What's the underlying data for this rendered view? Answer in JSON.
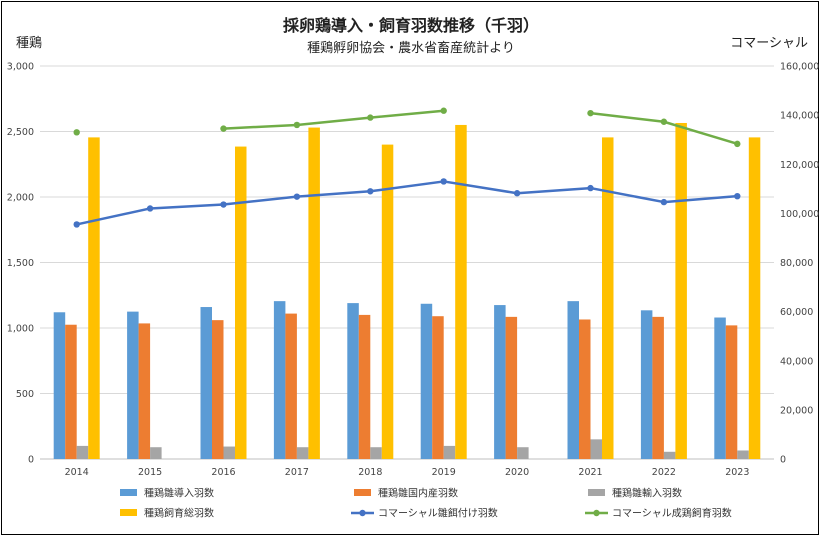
{
  "chart_data": {
    "type": "bar",
    "title": "採卵鶏導入・飼育羽数推移（千羽）",
    "subtitle": "種鶏孵卵協会・農水省畜産統計より",
    "left_axis_label": "種鶏",
    "right_axis_label": "コマーシャル",
    "categories": [
      "2014",
      "2015",
      "2016",
      "2017",
      "2018",
      "2019",
      "2020",
      "2021",
      "2022",
      "2023"
    ],
    "ylim_left": [
      0,
      3000
    ],
    "yticks_left": [
      "0",
      "500",
      "1,000",
      "1,500",
      "2,000",
      "2,500",
      "3,000"
    ],
    "ylim_right": [
      0,
      160000
    ],
    "yticks_right": [
      "0",
      "20,000",
      "40,000",
      "60,000",
      "80,000",
      "100,000",
      "120,000",
      "140,000",
      "160,000"
    ],
    "grid": true,
    "legend_position": "bottom",
    "series": [
      {
        "name": "種鶏雛導入羽数",
        "kind": "bar",
        "axis": "left",
        "color": "#5b9bd5",
        "values": [
          1120,
          1125,
          1160,
          1205,
          1190,
          1185,
          1175,
          1205,
          1135,
          1080
        ]
      },
      {
        "name": "種鶏雛国内産羽数",
        "kind": "bar",
        "axis": "left",
        "color": "#ed7d31",
        "values": [
          1025,
          1035,
          1060,
          1110,
          1100,
          1090,
          1085,
          1065,
          1085,
          1020
        ]
      },
      {
        "name": "種鶏雛輸入羽数",
        "kind": "bar",
        "axis": "left",
        "color": "#a5a5a5",
        "values": [
          100,
          90,
          95,
          90,
          90,
          100,
          90,
          150,
          55,
          65
        ]
      },
      {
        "name": "種鶏飼育総羽数",
        "kind": "bar",
        "axis": "left",
        "color": "#ffc000",
        "values": [
          2455,
          null,
          2385,
          2530,
          2400,
          2550,
          null,
          2455,
          2565,
          2455
        ]
      },
      {
        "name": "コマーシャル雛餌付け羽数",
        "kind": "line",
        "axis": "right",
        "color": "#4472c4",
        "values": [
          95500,
          102000,
          103600,
          106800,
          109000,
          113000,
          108200,
          110300,
          104600,
          107000
        ]
      },
      {
        "name": "コマーシャル成鶏飼育羽数",
        "kind": "line",
        "axis": "right",
        "color": "#70ad47",
        "values": [
          133000,
          null,
          134500,
          136000,
          139000,
          141800,
          null,
          140800,
          137300,
          128300
        ]
      }
    ]
  }
}
